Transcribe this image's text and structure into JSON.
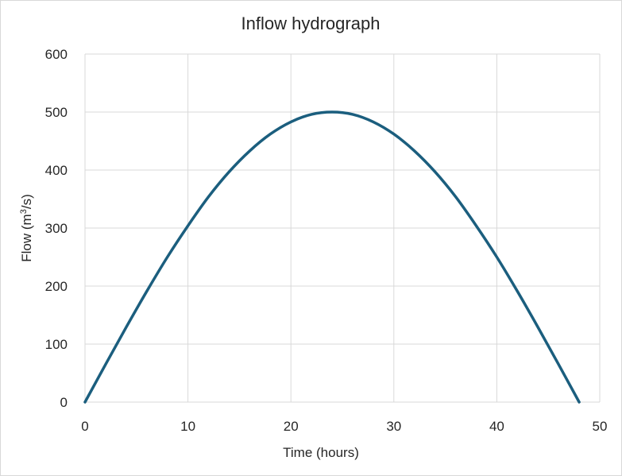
{
  "chart_data": {
    "type": "line",
    "title": "Inflow hydrograph",
    "xlabel": "Time (hours)",
    "ylabel_base": "Flow (m",
    "ylabel_sup": "3",
    "ylabel_tail": "/s)",
    "xlim": [
      0,
      50
    ],
    "ylim": [
      0,
      600
    ],
    "x_ticks": [
      "0",
      "10",
      "20",
      "30",
      "40",
      "50"
    ],
    "y_ticks": [
      "0",
      "100",
      "200",
      "300",
      "400",
      "500",
      "600"
    ],
    "grid": true,
    "legend": "none",
    "line_color": "#1b5e7e",
    "series": [
      {
        "x": [
          0,
          2,
          4,
          6,
          8,
          10,
          12,
          14,
          16,
          18,
          20,
          22,
          24,
          26,
          28,
          30,
          32,
          34,
          36,
          38,
          40,
          42,
          44,
          46,
          48
        ],
        "values": [
          0,
          65,
          129,
          191,
          250,
          304,
          354,
          397,
          433,
          462,
          483,
          496,
          500,
          496,
          483,
          462,
          433,
          397,
          354,
          304,
          250,
          191,
          129,
          65,
          0
        ]
      }
    ]
  }
}
